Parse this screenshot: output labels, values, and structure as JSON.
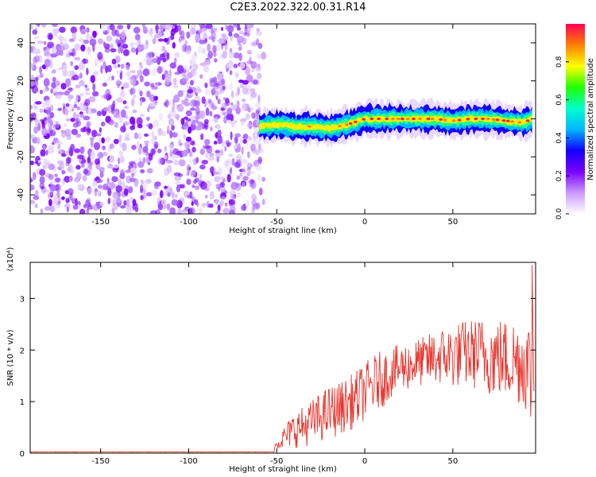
{
  "title": "C2E3.2022.322.00.31.R14",
  "colors": {
    "snr_line": "#e8352d",
    "axis": "#000000",
    "colorbar_stops": [
      "#ffffff",
      "#cc99ff",
      "#7a00ff",
      "#1100ff",
      "#00b8ff",
      "#00ffcc",
      "#22ff00",
      "#ffff00",
      "#ff7f00",
      "#ff0055"
    ]
  },
  "chart_data": [
    {
      "type": "heatmap",
      "title": "",
      "xlabel": "Height of straight line (km)",
      "ylabel": "Frequency (Hz)",
      "xlim": [
        -190,
        97
      ],
      "ylim": [
        -50,
        50
      ],
      "xticks": [
        -150,
        -100,
        -50,
        0,
        50
      ],
      "yticks": [
        -40,
        -20,
        0,
        20,
        40
      ],
      "colorbar": {
        "label": "Normalized spectral amplitude",
        "range": [
          0.0,
          1.0
        ],
        "ticks": [
          "0.0",
          "0.2",
          "0.4",
          "0.6",
          "0.8"
        ]
      },
      "noise_region_x": [
        -190,
        -61
      ],
      "signal_start_x": -61,
      "signal_trace": {
        "x": [
          -60,
          -50,
          -40,
          -30,
          -20,
          -10,
          0,
          10,
          20,
          30,
          40,
          50,
          60,
          70,
          80,
          90,
          95
        ],
        "frequency": [
          -4,
          -3,
          -4,
          -4,
          -5,
          -3,
          0,
          0,
          0,
          0,
          0,
          -1,
          0,
          0,
          -1,
          -2,
          0
        ]
      }
    },
    {
      "type": "line",
      "title": "",
      "xlabel": "Height of straight line (km)",
      "ylabel": "SNR (10 * v/v)",
      "y_scale_label": "(x10⁴)",
      "xlim": [
        -190,
        97
      ],
      "ylim": [
        0,
        3.7
      ],
      "xticks": [
        -150,
        -100,
        -50,
        0,
        50
      ],
      "yticks": [
        0,
        1,
        2,
        3
      ],
      "series": [
        {
          "x": [
            -190,
            -60,
            -52,
            -50,
            -45,
            -40,
            -35,
            -30,
            -25,
            -20,
            -15,
            -10,
            -5,
            0,
            5,
            10,
            15,
            20,
            25,
            30,
            35,
            40,
            45,
            50,
            55,
            60,
            65,
            70,
            75,
            80,
            85,
            90,
            93,
            95
          ],
          "y": [
            0.02,
            0.02,
            0.05,
            0.2,
            0.35,
            0.5,
            0.55,
            0.65,
            0.75,
            0.85,
            0.9,
            1.0,
            1.1,
            1.25,
            1.4,
            1.5,
            1.6,
            1.7,
            1.75,
            1.8,
            1.85,
            1.9,
            1.95,
            1.95,
            2.0,
            2.0,
            2.0,
            1.95,
            1.95,
            1.9,
            1.9,
            1.85,
            1.8,
            1.5
          ],
          "spread": [
            0,
            0,
            0.05,
            0.15,
            0.3,
            0.45,
            0.5,
            0.55,
            0.6,
            0.65,
            0.65,
            0.65,
            0.7,
            0.7,
            0.7,
            0.7,
            0.6,
            0.6,
            0.6,
            0.6,
            0.6,
            0.7,
            0.7,
            0.8,
            0.8,
            0.85,
            0.9,
            0.95,
            1.0,
            1.0,
            1.05,
            1.1,
            1.2,
            1.5
          ]
        }
      ]
    }
  ]
}
